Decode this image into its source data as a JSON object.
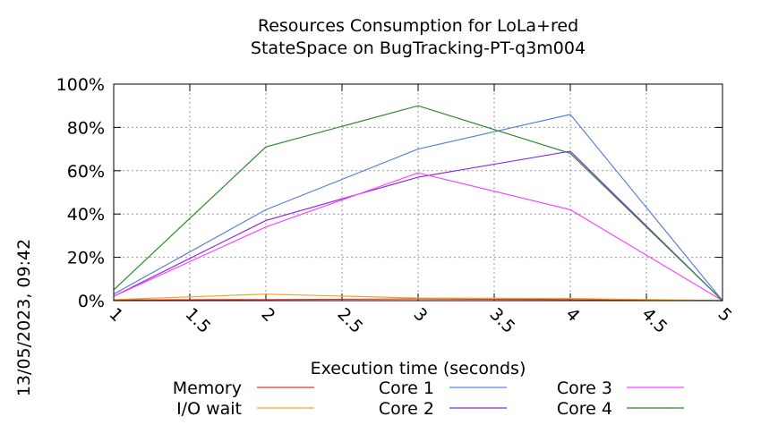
{
  "chart_data": {
    "type": "line",
    "title": [
      "Resources Consumption for LoLa+red",
      "StateSpace on BugTracking-PT-q3m004"
    ],
    "xlabel": "Execution time (seconds)",
    "ylabel": "",
    "timestamp": "13/05/2023, 09:42",
    "xlim": [
      1,
      5
    ],
    "ylim": [
      0,
      100
    ],
    "x_ticks": [
      "1",
      "1.5",
      "2",
      "2.5",
      "3",
      "3.5",
      "4",
      "4.5",
      "5"
    ],
    "x_tick_values": [
      1,
      1.5,
      2,
      2.5,
      3,
      3.5,
      4,
      4.5,
      5
    ],
    "y_ticks": [
      "0%",
      "20%",
      "40%",
      "60%",
      "80%",
      "100%"
    ],
    "y_tick_values": [
      0,
      20,
      40,
      60,
      80,
      100
    ],
    "grid": true,
    "legend_placement": "bottom",
    "x": [
      1,
      2,
      3,
      4,
      5
    ],
    "series": [
      {
        "name": "Memory",
        "color": "#e8362a",
        "values": [
          0.3,
          0.5,
          0.8,
          0.5,
          0
        ]
      },
      {
        "name": "I/O wait",
        "color": "#f5a623",
        "values": [
          0.5,
          3,
          1.2,
          1,
          0
        ]
      },
      {
        "name": "Core 1",
        "color": "#5b82d6",
        "values": [
          3,
          42,
          70,
          86,
          0
        ]
      },
      {
        "name": "Core 2",
        "color": "#8a2be2",
        "values": [
          2,
          37,
          57,
          69,
          0
        ]
      },
      {
        "name": "Core 3",
        "color": "#ff44ff",
        "values": [
          2,
          34,
          59,
          42,
          0
        ]
      },
      {
        "name": "Core 4",
        "color": "#2a8a2a",
        "values": [
          5,
          71,
          90,
          68,
          0
        ]
      }
    ]
  }
}
